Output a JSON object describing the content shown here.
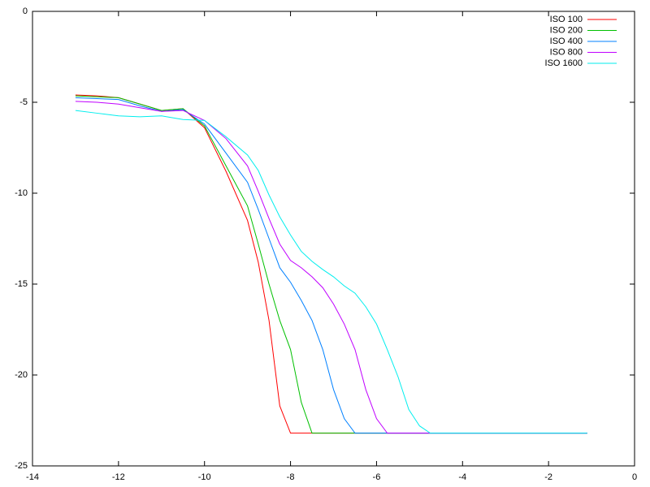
{
  "chart_data": {
    "type": "line",
    "x": [
      -13,
      -12.5,
      -12,
      -11.5,
      -11,
      -10.5,
      -10,
      -9.5,
      -9,
      -8.75,
      -8.5,
      -8.25,
      -8,
      -7.75,
      -7.5,
      -7.25,
      -7,
      -6.75,
      -6.5,
      -6.25,
      -6,
      -5.75,
      -5.5,
      -5.25,
      -5,
      -4.75,
      -3,
      -1.1
    ],
    "series": [
      {
        "name": "ISO 100",
        "color": "#ff0000",
        "values": [
          -4.6,
          -4.65,
          -4.75,
          -5.1,
          -5.45,
          -5.35,
          -6.4,
          -8.8,
          -11.5,
          -13.8,
          -17,
          -21.7,
          -23.2,
          -23.2,
          -23.2,
          -23.2,
          -23.2,
          -23.2,
          -23.2,
          -23.2,
          -23.2,
          -23.2,
          -23.2,
          -23.2,
          -23.2,
          -23.2,
          -23.2,
          -23.2
        ]
      },
      {
        "name": "ISO 200",
        "color": "#00c000",
        "values": [
          -4.65,
          -4.7,
          -4.75,
          -5.1,
          -5.45,
          -5.35,
          -6.3,
          -8.5,
          -10.7,
          -12.8,
          -15,
          -17,
          -18.6,
          -21.5,
          -23.2,
          -23.2,
          -23.2,
          -23.2,
          -23.2,
          -23.2,
          -23.2,
          -23.2,
          -23.2,
          -23.2,
          -23.2,
          -23.2,
          -23.2,
          -23.2
        ]
      },
      {
        "name": "ISO 400",
        "color": "#0080ff",
        "values": [
          -4.75,
          -4.8,
          -4.85,
          -5.2,
          -5.5,
          -5.4,
          -6.2,
          -7.8,
          -9.4,
          -10.9,
          -12.5,
          -14.1,
          -14.9,
          -15.9,
          -17,
          -18.6,
          -20.8,
          -22.4,
          -23.2,
          -23.2,
          -23.2,
          -23.2,
          -23.2,
          -23.2,
          -23.2,
          -23.2,
          -23.2,
          -23.2
        ]
      },
      {
        "name": "ISO 800",
        "color": "#c000ff",
        "values": [
          -4.95,
          -5,
          -5.1,
          -5.3,
          -5.5,
          -5.45,
          -6,
          -7,
          -8.5,
          -9.9,
          -11.4,
          -12.8,
          -13.7,
          -14.1,
          -14.6,
          -15.2,
          -16.1,
          -17.2,
          -18.6,
          -20.8,
          -22.4,
          -23.2,
          -23.2,
          -23.2,
          -23.2,
          -23.2,
          -23.2,
          -23.2
        ]
      },
      {
        "name": "ISO 1600",
        "color": "#00eeee",
        "values": [
          -5.45,
          -5.6,
          -5.75,
          -5.8,
          -5.75,
          -5.95,
          -6,
          -6.9,
          -7.9,
          -8.75,
          -10.1,
          -11.3,
          -12.3,
          -13.2,
          -13.75,
          -14.2,
          -14.6,
          -15.1,
          -15.5,
          -16.25,
          -17.2,
          -18.6,
          -20.1,
          -21.9,
          -22.8,
          -23.2,
          -23.2,
          -23.2
        ]
      }
    ],
    "xlim": [
      -14,
      0
    ],
    "xticks": [
      -14,
      -12,
      -10,
      -8,
      -6,
      -4,
      -2,
      0
    ],
    "ylim": [
      -25,
      0
    ],
    "yticks": [
      -25,
      -20,
      -15,
      -10,
      -5,
      0
    ],
    "legend": "top-right"
  }
}
